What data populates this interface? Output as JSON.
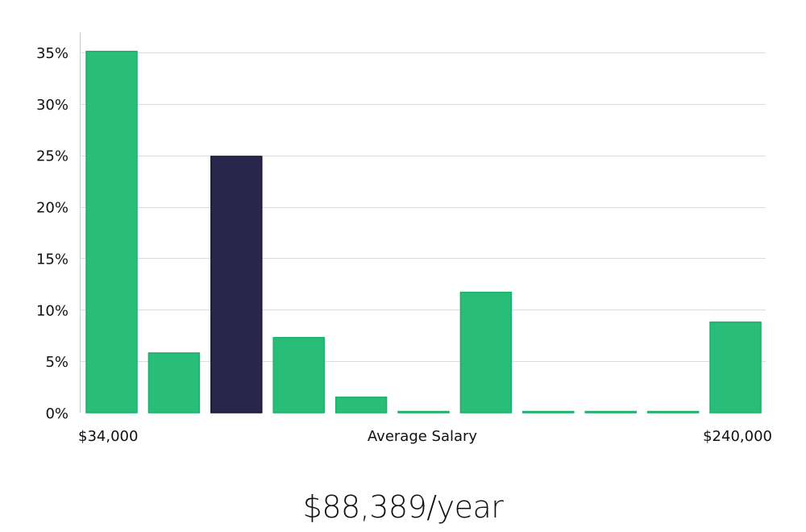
{
  "chart_data": {
    "type": "bar",
    "title": "",
    "ylabel": "",
    "xlabel": "Average Salary",
    "x_range_labels": {
      "min": "$34,000",
      "max": "$240,000"
    },
    "ylim": [
      0,
      37
    ],
    "y_ticks": [
      0,
      5,
      10,
      15,
      20,
      25,
      30,
      35
    ],
    "y_tick_labels": [
      "0%",
      "5%",
      "10%",
      "15%",
      "20%",
      "25%",
      "30%",
      "35%"
    ],
    "grid": true,
    "bins": 11,
    "values": [
      35.1,
      5.8,
      24.9,
      7.3,
      1.5,
      0.1,
      11.7,
      0.1,
      0.1,
      0.1,
      8.8
    ],
    "highlight_index": 2,
    "colors": {
      "bar": "#28bd78",
      "bar_stroke": "#1fae6b",
      "highlight": "#28264a",
      "highlight_stroke": "#1a1838",
      "grid": "#dcdcdc",
      "axis": "#cccccc"
    }
  },
  "salary_label": "$88,389/year"
}
